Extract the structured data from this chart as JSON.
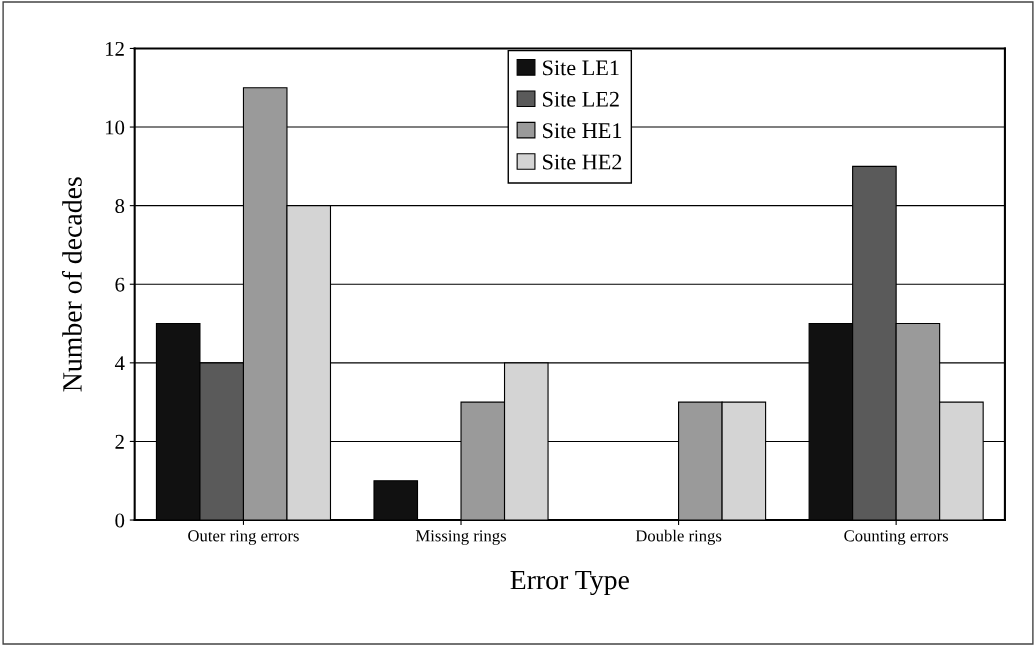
{
  "chart_data": {
    "type": "bar",
    "xlabel": "Error Type",
    "ylabel": "Number of decades",
    "categories": [
      "Outer ring errors",
      "Missing rings",
      "Double rings",
      "Counting errors"
    ],
    "series": [
      {
        "name": "Site LE1",
        "color": "#111111",
        "values": [
          5,
          1,
          0,
          5
        ]
      },
      {
        "name": "Site LE2",
        "color": "#5a5a5a",
        "values": [
          4,
          0,
          0,
          9
        ]
      },
      {
        "name": "Site HE1",
        "color": "#9a9a9a",
        "values": [
          11,
          3,
          3,
          5
        ]
      },
      {
        "name": "Site HE2",
        "color": "#d4d4d4",
        "values": [
          8,
          4,
          3,
          3
        ]
      }
    ],
    "ylim": [
      0,
      12
    ],
    "yticks": [
      0,
      2,
      4,
      6,
      8,
      10,
      12
    ],
    "grid": "y",
    "legend": "top"
  }
}
